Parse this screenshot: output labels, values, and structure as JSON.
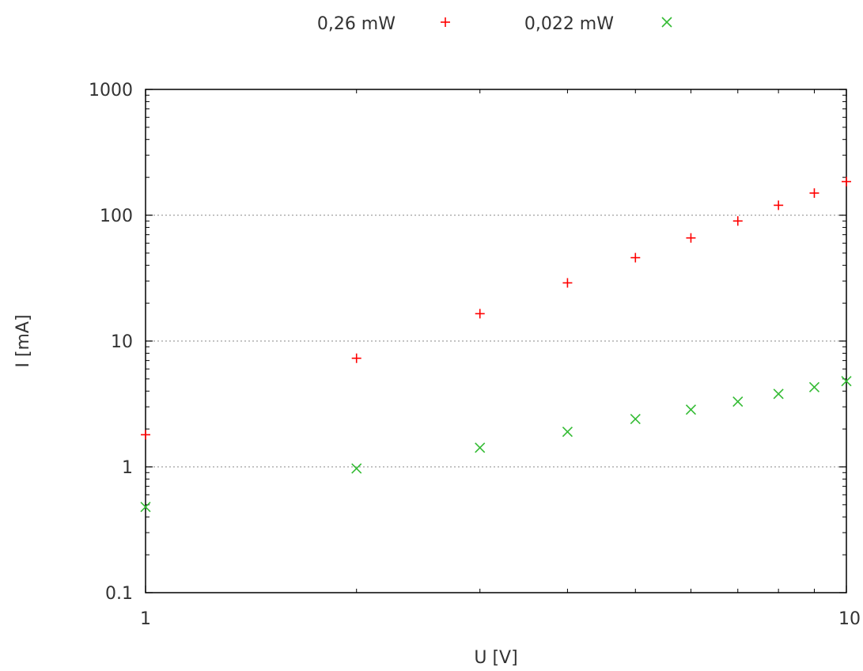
{
  "chart_data": {
    "type": "scatter",
    "xlabel": "U [V]",
    "ylabel": "I [mA]",
    "xscale": "log",
    "yscale": "log",
    "xlim": [
      1,
      10
    ],
    "ylim": [
      0.1,
      1000
    ],
    "x_ticks": [
      "1",
      "10"
    ],
    "y_ticks": [
      "0.1",
      "1",
      "10",
      "100",
      "1000"
    ],
    "grid": "horizontal dotted at major y ticks",
    "legend_position": "top-center",
    "series": [
      {
        "name": "0,26 mW",
        "marker": "plus",
        "color": "#ff0000",
        "points": [
          {
            "x": 1,
            "y": 1.8
          },
          {
            "x": 2,
            "y": 7.3
          },
          {
            "x": 3,
            "y": 16.5
          },
          {
            "x": 4,
            "y": 29
          },
          {
            "x": 5,
            "y": 46
          },
          {
            "x": 6,
            "y": 66
          },
          {
            "x": 7,
            "y": 90
          },
          {
            "x": 8,
            "y": 120
          },
          {
            "x": 9,
            "y": 150
          },
          {
            "x": 10,
            "y": 185
          }
        ]
      },
      {
        "name": "0,022 mW",
        "marker": "cross",
        "color": "#33bb33",
        "points": [
          {
            "x": 1,
            "y": 0.48
          },
          {
            "x": 2,
            "y": 0.97
          },
          {
            "x": 3,
            "y": 1.42
          },
          {
            "x": 4,
            "y": 1.9
          },
          {
            "x": 5,
            "y": 2.4
          },
          {
            "x": 6,
            "y": 2.85
          },
          {
            "x": 7,
            "y": 3.3
          },
          {
            "x": 8,
            "y": 3.8
          },
          {
            "x": 9,
            "y": 4.3
          },
          {
            "x": 10,
            "y": 4.8
          }
        ]
      }
    ]
  }
}
